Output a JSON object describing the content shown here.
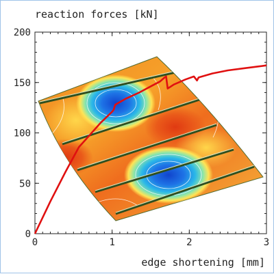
{
  "chart_data": {
    "type": "line",
    "ylabel": "reaction forces [kN]",
    "xlabel": "edge shortening [mm]",
    "xlim": [
      0,
      3
    ],
    "ylim": [
      0,
      200
    ],
    "x_ticks": [
      "0",
      "1",
      "2",
      "3"
    ],
    "y_ticks": [
      "0",
      "50",
      "100",
      "150",
      "200"
    ],
    "grid": false,
    "legend": "none",
    "series": [
      {
        "color": "#e01010",
        "x": [
          0,
          0.2,
          0.4,
          0.57,
          0.7,
          0.85,
          1.0,
          1.02,
          1.04,
          1.18,
          1.35,
          1.52,
          1.62,
          1.68,
          1.7,
          1.72,
          1.8,
          1.95,
          2.06,
          2.1,
          2.12,
          2.3,
          2.5,
          2.7,
          2.9,
          3.0
        ],
        "y": [
          0,
          32,
          62,
          86,
          97,
          110,
          121,
          123,
          128,
          134,
          140,
          147,
          151,
          155,
          156,
          144,
          148,
          153,
          156,
          152,
          155,
          159,
          162,
          164,
          166,
          167
        ]
      }
    ]
  },
  "background_image": {
    "description": "deformed plate contour surface",
    "colors": [
      "#e8501a",
      "#f49a22",
      "#ffd14a",
      "#2fc8e8",
      "#1f63e0",
      "#7ee8b8"
    ]
  }
}
